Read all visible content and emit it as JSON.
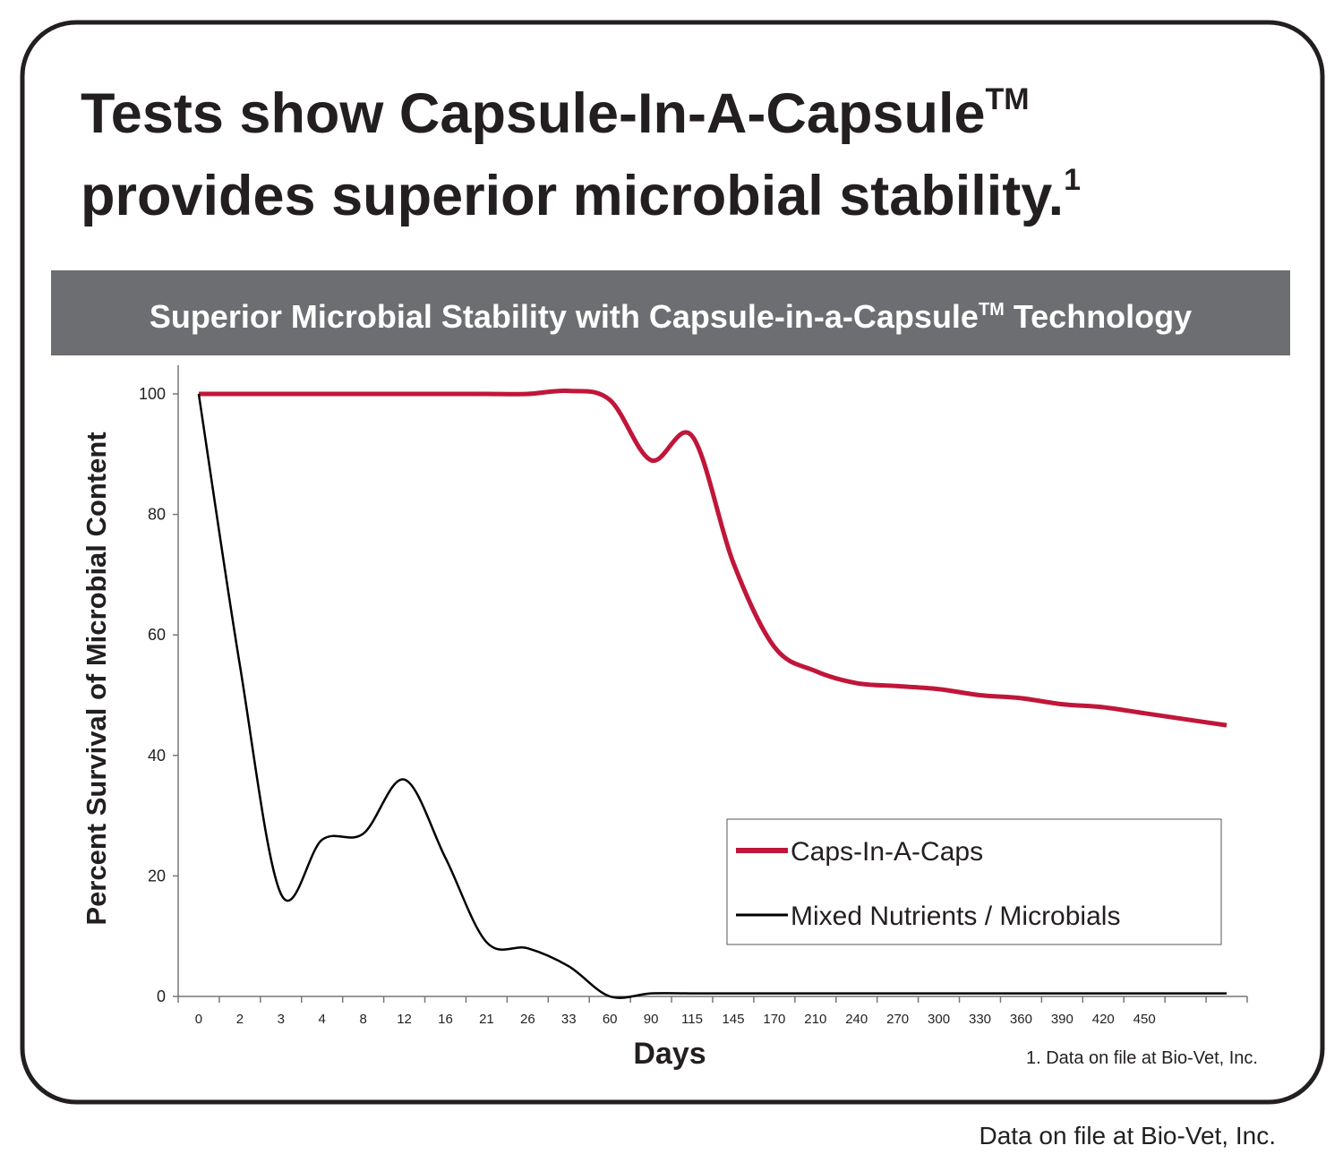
{
  "header": {
    "title_line1": "Tests show Capsule-In-A-Capsule",
    "title_tm": "TM",
    "title_line2": "provides superior microbial stability.",
    "title_mark": "1"
  },
  "chart_data": {
    "type": "line",
    "title": "Superior Microbial Stability with Capsule-in-a-Capsule",
    "title_tm": "TM",
    "title_suffix": "Technology",
    "xlabel": "Days",
    "ylabel": "Percent Survival of Microbial Content",
    "note": "1. Data on file at Bio-Vet, Inc.",
    "categories": [
      "0",
      "2",
      "3",
      "4",
      "8",
      "12",
      "16",
      "21",
      "26",
      "33",
      "60",
      "90",
      "115",
      "145",
      "170",
      "210",
      "240",
      "270",
      "300",
      "330",
      "360",
      "390",
      "420",
      "450",
      null,
      null
    ],
    "series": [
      {
        "name": "Caps-In-A-Caps",
        "color": "#c0163a",
        "values": [
          100,
          100,
          100,
          100,
          100,
          100,
          100,
          100,
          100,
          100.5,
          99,
          89,
          93,
          72,
          58,
          54,
          52,
          51.5,
          51,
          50,
          49.5,
          48.5,
          48,
          47,
          46,
          45
        ]
      },
      {
        "name": "Mixed Nutrients / Microbials",
        "color": "#000000",
        "values": [
          100,
          55,
          17,
          26,
          27,
          36,
          23,
          9,
          8,
          5,
          0,
          0.5,
          0.5,
          0.5,
          0.5,
          0.5,
          0.5,
          0.5,
          0.5,
          0.5,
          0.5,
          0.5,
          0.5,
          0.5,
          0.5,
          0.5
        ]
      }
    ],
    "ylim": [
      0,
      100
    ],
    "yticks": [
      0,
      20,
      40,
      60,
      80,
      100
    ],
    "grid": false
  },
  "footer": {
    "note": "Data on file at Bio-Vet, Inc."
  }
}
